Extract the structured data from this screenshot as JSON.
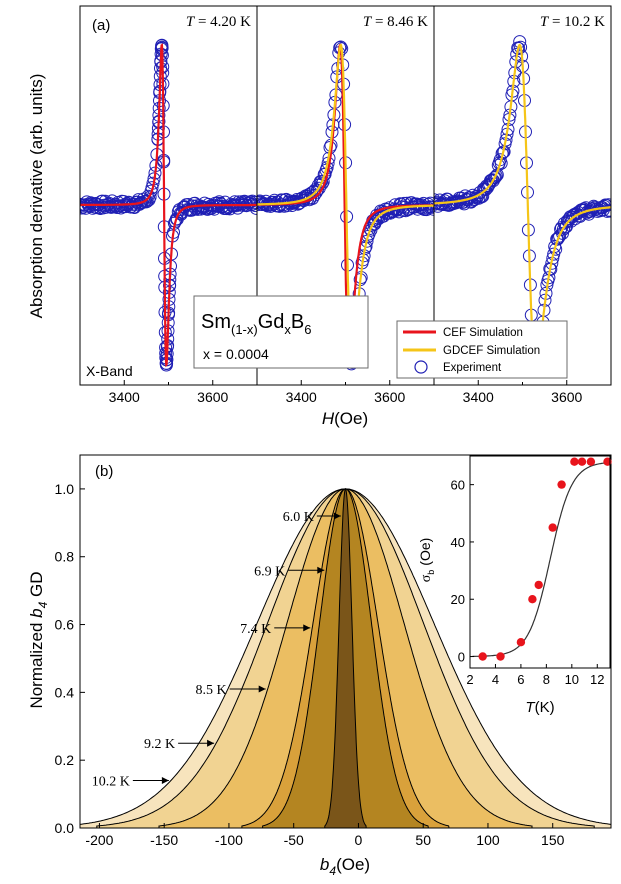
{
  "chart_data": [
    {
      "panel": "(a)",
      "type": "line",
      "ylabel": "Absorption derivative (arb. units)",
      "xlabel_main": "H",
      "xlabel_unit": "(Oe)",
      "band_label": "X-Band",
      "compound": {
        "text": "Sm",
        "sub1": "(1-x)",
        "text2": "Gd",
        "sub2": "x",
        "text3": "B",
        "sub3": "6",
        "conc": "x = 0.0004"
      },
      "legend": [
        "CEF Simulation",
        "GDCEF Simulation",
        "Experiment"
      ],
      "colors": {
        "cef": "#e8141c",
        "gdcef": "#f5c518",
        "experiment": "#1f1fb4"
      },
      "xlim": [
        3300,
        3700
      ],
      "xticks": [
        "3400",
        "3600"
      ],
      "subpanels": [
        {
          "temperature": "4.20 K",
          "center": 3490,
          "half_width": 9,
          "cef": true,
          "gdcef": false
        },
        {
          "temperature": "8.46 K",
          "center": 3502,
          "half_width": 22,
          "cef": true,
          "gdcef": true
        },
        {
          "temperature": "10.2 K",
          "center": 3512,
          "half_width": 32,
          "cef": false,
          "gdcef": true
        }
      ],
      "t_prefix": "T"
    },
    {
      "panel": "(b)",
      "type": "area",
      "ylabel_pre": "Normalized ",
      "ylabel_var": "b",
      "ylabel_sub": "4",
      "ylabel_post": " GD",
      "xlabel_var": "b",
      "xlabel_sub": "4",
      "xlabel_unit": "(Oe)",
      "xlim": [
        -215,
        195
      ],
      "ylim": [
        0,
        1.1
      ],
      "xticks": [
        "-200",
        "-150",
        "-100",
        "-50",
        "0",
        "50",
        "100",
        "150"
      ],
      "yticks": [
        "0.0",
        "0.2",
        "0.4",
        "0.6",
        "0.8",
        "1.0"
      ],
      "center": -10,
      "curves": [
        {
          "label": "10.2 K",
          "sigma": 68,
          "fill": "#f7e4bd"
        },
        {
          "label": "9.2 K",
          "sigma": 60,
          "fill": "#f1d392"
        },
        {
          "label": "8.5 K",
          "sigma": 45,
          "fill": "#ebbe62"
        },
        {
          "label": "7.4 K",
          "sigma": 25,
          "fill": "#d9a13b"
        },
        {
          "label": "6.9 K",
          "sigma": 20,
          "fill": "#b48521"
        },
        {
          "label": "6.0 K",
          "sigma": 5,
          "fill": "#7a5519"
        }
      ],
      "inset": {
        "type": "scatter",
        "xlabel": "T",
        "xunit": "(K)",
        "ylabel": "σ",
        "ylabel_sub": "b",
        "ylabel_unit": "(Oe)",
        "xlim": [
          2,
          13
        ],
        "ylim": [
          -4,
          70
        ],
        "xticks": [
          "2",
          "4",
          "6",
          "8",
          "10",
          "12"
        ],
        "yticks": [
          "0",
          "20",
          "40",
          "60"
        ],
        "x": [
          3.0,
          4.4,
          6.0,
          6.9,
          7.4,
          8.5,
          9.2,
          10.2,
          10.8,
          11.5,
          12.8
        ],
        "y": [
          0,
          0,
          5,
          20,
          25,
          45,
          60,
          68,
          68,
          68,
          68
        ],
        "point_color": "#e8141c"
      }
    }
  ],
  "panel_b_label": "(b)"
}
